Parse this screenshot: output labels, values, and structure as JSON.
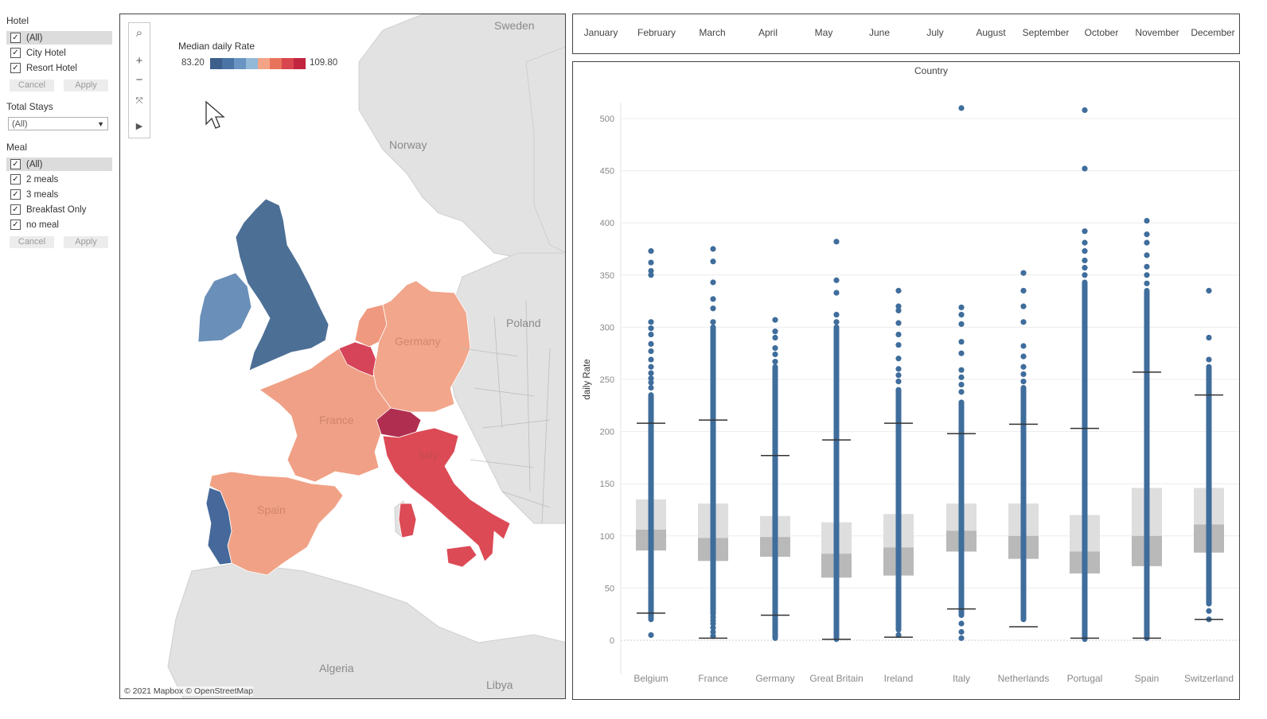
{
  "filters": {
    "hotel": {
      "title": "Hotel",
      "items": [
        {
          "label": "(All)",
          "checked": true,
          "selected": true
        },
        {
          "label": "City Hotel",
          "checked": true,
          "selected": false
        },
        {
          "label": "Resort Hotel",
          "checked": true,
          "selected": false
        }
      ],
      "cancel": "Cancel",
      "apply": "Apply"
    },
    "total_stays": {
      "title": "Total Stays",
      "value": "(All)"
    },
    "meal": {
      "title": "Meal",
      "items": [
        {
          "label": "(All)",
          "checked": true,
          "selected": true
        },
        {
          "label": "2 meals",
          "checked": true,
          "selected": false
        },
        {
          "label": "3 meals",
          "checked": true,
          "selected": false
        },
        {
          "label": "Breakfast Only",
          "checked": true,
          "selected": false
        },
        {
          "label": "no meal",
          "checked": true,
          "selected": false
        }
      ],
      "cancel": "Cancel",
      "apply": "Apply"
    }
  },
  "map": {
    "legend": {
      "title": "Median daily Rate",
      "min": "83.20",
      "max": "109.80",
      "colors": [
        "#3d5f8c",
        "#4a74a6",
        "#6a95c3",
        "#93b9d8",
        "#f3a487",
        "#e8735b",
        "#d9464f",
        "#c2263f"
      ]
    },
    "labels": {
      "sweden": "Sweden",
      "norway": "Norway",
      "poland": "Poland",
      "germany": "Germany",
      "france": "France",
      "italy": "Italy",
      "spain": "Spain",
      "algeria": "Algeria",
      "libya": "Libya"
    },
    "attribution": "© 2021 Mapbox © OpenStreetMap",
    "colors": {
      "uk": "#4c6f96",
      "ireland": "#6a8fb8",
      "portugal": "#46689a",
      "spain": "#f1a286",
      "france": "#f0a086",
      "germany": "#f2a68b",
      "netherlands": "#ef9a80",
      "belgium": "#d54459",
      "switzerland": "#b02f50",
      "italy": "#dc4a55",
      "background_land": "#e2e2e2",
      "sea": "#ffffff"
    }
  },
  "months": [
    "January",
    "February",
    "March",
    "April",
    "May",
    "June",
    "July",
    "August",
    "September",
    "October",
    "November",
    "December"
  ],
  "chart_data": {
    "type": "box",
    "title": "Country",
    "xlabel": "",
    "ylabel": "daily Rate",
    "ylim": [
      0,
      520
    ],
    "yticks": [
      0,
      50,
      100,
      150,
      200,
      250,
      300,
      350,
      400,
      450,
      500
    ],
    "categories": [
      "Belgium",
      "France",
      "Germany",
      "Great Britain",
      "Ireland",
      "Italy",
      "Netherlands",
      "Portugal",
      "Spain",
      "Switzerland"
    ],
    "boxes": [
      {
        "name": "Belgium",
        "whisker_low": 26,
        "q1": 86,
        "median": 106,
        "q3": 135,
        "whisker_high": 208,
        "strip_min": 20,
        "strip_max": 235,
        "outliers": [
          5,
          242,
          247,
          251,
          256,
          262,
          269,
          277,
          284,
          293,
          299,
          305,
          350,
          354,
          362,
          373
        ]
      },
      {
        "name": "France",
        "whisker_low": 2,
        "q1": 76,
        "median": 98,
        "q3": 131,
        "whisker_high": 211,
        "strip_min": 25,
        "strip_max": 300,
        "outliers": [
          4,
          8,
          12,
          16,
          19,
          22,
          305,
          318,
          327,
          343,
          363,
          375
        ]
      },
      {
        "name": "Germany",
        "whisker_low": 24,
        "q1": 80,
        "median": 99,
        "q3": 119,
        "whisker_high": 177,
        "strip_min": 2,
        "strip_max": 262,
        "outliers": [
          267,
          274,
          280,
          290,
          296,
          307
        ]
      },
      {
        "name": "Great Britain",
        "whisker_low": 1,
        "q1": 60,
        "median": 83,
        "q3": 113,
        "whisker_high": 192,
        "strip_min": 1,
        "strip_max": 300,
        "outliers": [
          305,
          312,
          333,
          345,
          382
        ]
      },
      {
        "name": "Ireland",
        "whisker_low": 3,
        "q1": 62,
        "median": 89,
        "q3": 121,
        "whisker_high": 208,
        "strip_min": 10,
        "strip_max": 240,
        "outliers": [
          5,
          248,
          254,
          260,
          270,
          283,
          293,
          304,
          316,
          320,
          335
        ]
      },
      {
        "name": "Italy",
        "whisker_low": 30,
        "q1": 85,
        "median": 105,
        "q3": 131,
        "whisker_high": 198,
        "strip_min": 24,
        "strip_max": 228,
        "outliers": [
          2,
          8,
          16,
          238,
          245,
          252,
          259,
          275,
          286,
          303,
          312,
          319,
          510
        ]
      },
      {
        "name": "Netherlands",
        "whisker_low": 13,
        "q1": 78,
        "median": 100,
        "q3": 131,
        "whisker_high": 207,
        "strip_min": 20,
        "strip_max": 242,
        "outliers": [
          248,
          255,
          262,
          272,
          282,
          305,
          320,
          335,
          352
        ]
      },
      {
        "name": "Portugal",
        "whisker_low": 2,
        "q1": 64,
        "median": 85,
        "q3": 120,
        "whisker_high": 203,
        "strip_min": 1,
        "strip_max": 343,
        "outliers": [
          350,
          357,
          364,
          373,
          381,
          392,
          452,
          508
        ]
      },
      {
        "name": "Spain",
        "whisker_low": 2,
        "q1": 71,
        "median": 100,
        "q3": 146,
        "whisker_high": 257,
        "strip_min": 2,
        "strip_max": 335,
        "outliers": [
          342,
          350,
          358,
          369,
          381,
          389,
          402
        ]
      },
      {
        "name": "Switzerland",
        "whisker_low": 20,
        "q1": 84,
        "median": 111,
        "q3": 146,
        "whisker_high": 235,
        "strip_min": 35,
        "strip_max": 262,
        "outliers": [
          20,
          28,
          269,
          290,
          335
        ]
      }
    ],
    "colors": {
      "dots": "#3f6d9c",
      "box_upper": "#dedede",
      "box_lower": "#b9b9b9",
      "whisker": "#333333",
      "grid": "#ececec",
      "axis_text": "#888888"
    }
  }
}
